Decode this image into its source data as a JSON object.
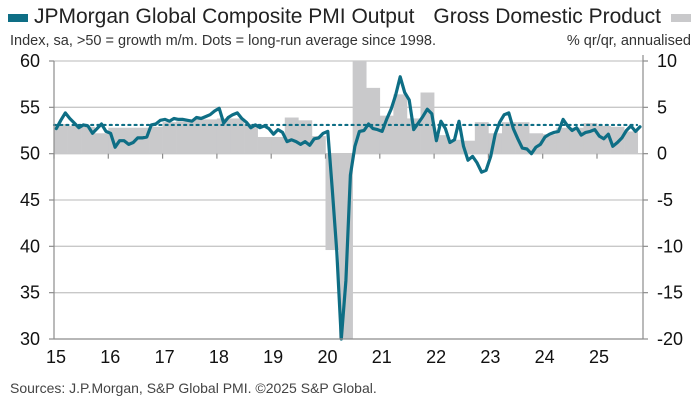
{
  "header": {
    "left_title": "JPMorgan Global Composite PMI Output",
    "right_title": "Gross Domestic Product",
    "left_subtitle": "Index, sa, >50 = growth m/m. Dots = long-run average since 1998.",
    "right_subtitle": "% qr/qr, annualised"
  },
  "footer": {
    "source": "Sources: J.P.Morgan, S&P Global PMI. ©2025 S&P Global."
  },
  "colors": {
    "pmi_line": "#0e6e85",
    "gdp_bars": "#c9c9cb",
    "gridline": "#c8c8c8",
    "axis": "#8c8c8c"
  },
  "chart_data": {
    "type": "bar+line",
    "title": "JPMorgan Global Composite PMI Output vs Gross Domestic Product",
    "xlabel": "",
    "ylabel_left": "Index, sa, >50 = growth m/m",
    "ylabel_right": "% qr/qr, annualised",
    "grid": true,
    "legend": "top",
    "x_tick_labels": [
      "15",
      "16",
      "17",
      "18",
      "19",
      "20",
      "21",
      "22",
      "23",
      "24",
      "25"
    ],
    "y_left": {
      "range": [
        30,
        60
      ],
      "ticks": [
        30,
        35,
        40,
        45,
        50,
        55,
        60
      ]
    },
    "y_right": {
      "range": [
        -20,
        10
      ],
      "ticks": [
        -20,
        -15,
        -10,
        -5,
        0,
        5,
        10
      ]
    },
    "long_run_average": 53.1,
    "series": [
      {
        "name": "JPMorgan Global Composite PMI Output",
        "axis": "left",
        "kind": "line",
        "frequency": "monthly",
        "start": "2015-01",
        "values": [
          52.7,
          53.6,
          54.4,
          53.8,
          53.3,
          52.8,
          53.1,
          53.0,
          52.2,
          52.7,
          53.2,
          52.4,
          52.2,
          50.7,
          51.4,
          51.4,
          51.0,
          51.2,
          51.7,
          51.7,
          51.8,
          53.1,
          53.2,
          53.6,
          53.7,
          53.5,
          53.8,
          53.7,
          53.7,
          53.6,
          53.5,
          53.9,
          53.8,
          54.0,
          54.2,
          54.6,
          54.9,
          53.3,
          53.9,
          54.2,
          54.4,
          53.8,
          53.4,
          52.8,
          53.1,
          52.8,
          53.0,
          52.7,
          52.1,
          52.6,
          52.3,
          51.3,
          51.5,
          51.3,
          51.0,
          51.3,
          50.9,
          51.6,
          51.7,
          52.2,
          52.4,
          46.1,
          39.4,
          26.2,
          36.3,
          47.7,
          50.8,
          52.4,
          52.5,
          53.2,
          52.7,
          52.6,
          52.4,
          53.7,
          54.8,
          56.3,
          58.3,
          56.6,
          55.8,
          52.6,
          53.3,
          54.0,
          54.8,
          54.3,
          51.4,
          53.5,
          52.7,
          51.2,
          51.5,
          53.5,
          50.8,
          49.3,
          49.7,
          49.0,
          48.0,
          48.2,
          49.7,
          52.1,
          53.4,
          54.2,
          54.4,
          52.7,
          51.6,
          50.6,
          50.5,
          50.0,
          50.7,
          51.0,
          51.8,
          52.1,
          52.3,
          52.4,
          53.7,
          53.0,
          52.5,
          52.8,
          52.0,
          52.3,
          52.4,
          52.6,
          51.9,
          51.6,
          52.1,
          50.8,
          51.2,
          51.7,
          52.5,
          53.0,
          52.4,
          52.9
        ]
      },
      {
        "name": "Gross Domestic Product",
        "axis": "right",
        "kind": "bar",
        "frequency": "quarterly",
        "start": "2015-Q1",
        "values": [
          3.2,
          3.0,
          2.9,
          2.2,
          2.8,
          2.8,
          2.8,
          2.9,
          3.4,
          3.5,
          3.7,
          3.7,
          3.8,
          3.8,
          3.2,
          1.8,
          1.8,
          3.9,
          3.6,
          1.9,
          -10.4,
          -20.0,
          10.0,
          7.1,
          4.1,
          6.4,
          3.8,
          6.6,
          2.0,
          1.5,
          1.4,
          3.4,
          2.2,
          3.4,
          3.4,
          2.2,
          2.1,
          2.8,
          2.8,
          3.3,
          3.0,
          2.9,
          2.4
        ]
      }
    ]
  }
}
